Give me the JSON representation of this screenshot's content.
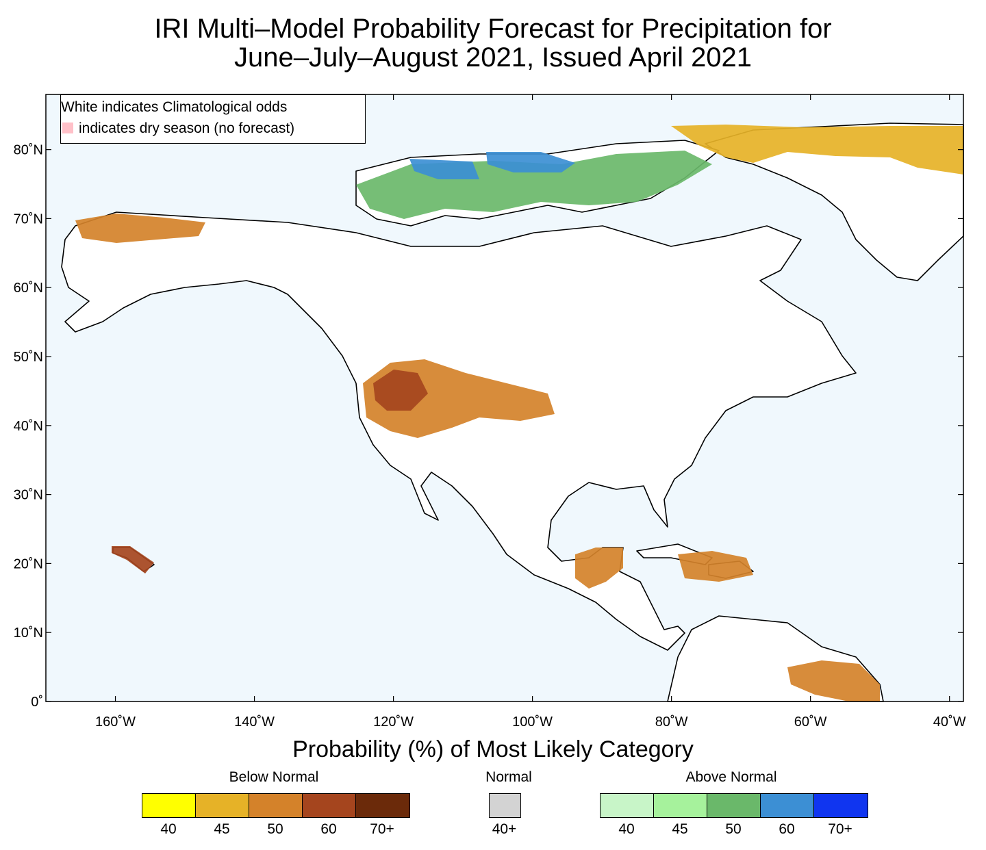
{
  "title": {
    "line1": "IRI Multi–Model Probability Forecast for Precipitation for",
    "line2": "June–July–August 2021, Issued April 2021"
  },
  "map": {
    "ocean_color": "#f0f8fd",
    "land_color": "#ffffff",
    "lat_labels": [
      "80˚N",
      "70˚N",
      "60˚N",
      "50˚N",
      "40˚N",
      "30˚N",
      "20˚N",
      "10˚N",
      "0˚"
    ],
    "lon_labels": [
      "160˚W",
      "140˚W",
      "120˚W",
      "100˚W",
      "80˚W",
      "60˚W",
      "40˚W"
    ],
    "notes": {
      "line1": "White indicates Climatological odds",
      "line2": "indicates dry season (no forecast)",
      "dry_color": "#ffc0c8"
    },
    "regions": [
      {
        "name": "western-us-dry",
        "category": "below",
        "level": "50"
      },
      {
        "name": "great-basin-core",
        "category": "below",
        "level": "60"
      },
      {
        "name": "canadian-arctic-wet",
        "category": "above",
        "level": "50"
      },
      {
        "name": "arctic-islands-wet",
        "category": "above",
        "level": "60"
      },
      {
        "name": "alaska-north-dry",
        "category": "below",
        "level": "50"
      },
      {
        "name": "greenland-north-dry",
        "category": "below",
        "level": "45"
      },
      {
        "name": "yucatan-dry",
        "category": "below",
        "level": "50"
      },
      {
        "name": "caribbean-dry",
        "category": "below",
        "level": "50"
      },
      {
        "name": "guiana-dry",
        "category": "below",
        "level": "50"
      },
      {
        "name": "hawaii-dry",
        "category": "below",
        "level": "60"
      }
    ]
  },
  "legend": {
    "title": "Probability (%) of Most Likely Category",
    "below": {
      "label": "Below Normal",
      "colors": [
        "#ffff00",
        "#e6b227",
        "#d4822a",
        "#a5451e",
        "#6b2a0a"
      ],
      "ticks": [
        "40",
        "45",
        "50",
        "60",
        "70+"
      ]
    },
    "normal": {
      "label": "Normal",
      "colors": [
        "#d3d3d3"
      ],
      "ticks": [
        "40+"
      ]
    },
    "above": {
      "label": "Above Normal",
      "colors": [
        "#c8f5c8",
        "#a6f29c",
        "#6ab86a",
        "#3c8fd4",
        "#1035f0"
      ],
      "ticks": [
        "40",
        "45",
        "50",
        "60",
        "70+"
      ]
    }
  }
}
